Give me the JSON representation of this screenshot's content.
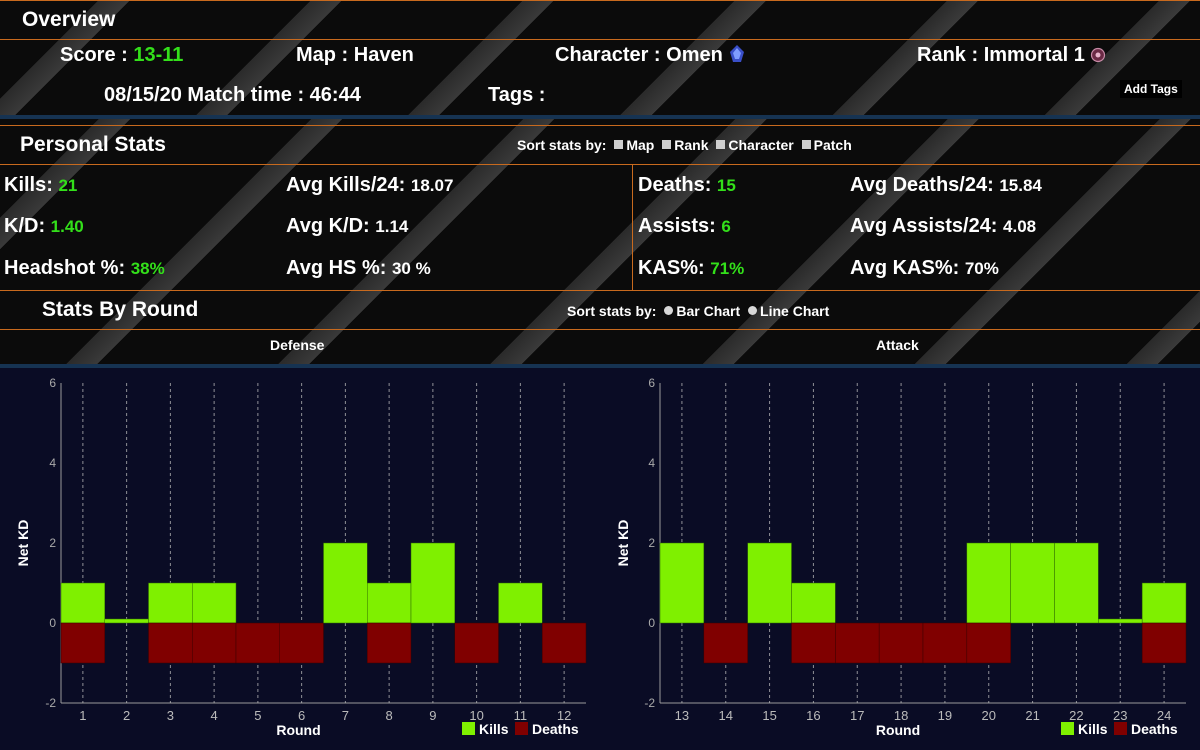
{
  "overview": {
    "title": "Overview",
    "score_label": "Score :",
    "score_value": "13-11",
    "map_label": "Map :",
    "map_value": "Haven",
    "character_label": "Character :",
    "character_value": "Omen",
    "rank_label": "Rank :",
    "rank_value": "Immortal 1",
    "date": "08/15/20",
    "match_time_label": "Match time :",
    "match_time_value": "46:44",
    "tags_label": "Tags :",
    "add_tags_label": "Add Tags"
  },
  "personal_stats": {
    "title": "Personal Stats",
    "sort_label": "Sort stats by:",
    "sort_options": [
      "Map",
      "Rank",
      "Character",
      "Patch"
    ],
    "stats": [
      {
        "label": "Kills:",
        "value": "21"
      },
      {
        "label": "Avg Kills/24:",
        "value": "18.07"
      },
      {
        "label": "Deaths:",
        "value": "15"
      },
      {
        "label": "Avg Deaths/24:",
        "value": "15.84"
      },
      {
        "label": "K/D:",
        "value": "1.40"
      },
      {
        "label": "Avg K/D:",
        "value": "1.14"
      },
      {
        "label": "Assists:",
        "value": "6"
      },
      {
        "label": "Avg Assists/24:",
        "value": "4.08"
      },
      {
        "label": "Headshot %:",
        "value": "38%"
      },
      {
        "label": "Avg HS %:",
        "value": "30 %"
      },
      {
        "label": "KAS%:",
        "value": "71%"
      },
      {
        "label": "Avg KAS%:",
        "value": "70%"
      }
    ]
  },
  "stats_by_round": {
    "title": "Stats By Round",
    "sort_label": "Sort stats by:",
    "chart_options": [
      "Bar Chart",
      "Line Chart"
    ],
    "defense_label": "Defense",
    "attack_label": "Attack"
  },
  "colors": {
    "accent": "#c86a1e",
    "green_value": "#33e01a",
    "kills": "#7ff000",
    "deaths": "#800000",
    "chart_bg": "#0a0c25"
  },
  "chart_data": [
    {
      "type": "bar",
      "title": "Defense",
      "xlabel": "Round",
      "ylabel": "Net KD",
      "ylim": [
        -2,
        6
      ],
      "yticks": [
        -2,
        0,
        2,
        4,
        6
      ],
      "categories": [
        "1",
        "2",
        "3",
        "4",
        "5",
        "6",
        "7",
        "8",
        "9",
        "10",
        "11",
        "12"
      ],
      "series": [
        {
          "name": "Kills",
          "values": [
            1,
            0.1,
            1,
            1,
            0,
            0,
            2,
            1,
            2,
            0,
            1,
            0
          ]
        },
        {
          "name": "Deaths",
          "values": [
            -1,
            0,
            -1,
            -1,
            -1,
            -1,
            0,
            -1,
            0,
            -1,
            0,
            -1
          ]
        }
      ],
      "grid": true,
      "legend": "bottom-right"
    },
    {
      "type": "bar",
      "title": "Attack",
      "xlabel": "Round",
      "ylabel": "Net KD",
      "ylim": [
        -2,
        6
      ],
      "yticks": [
        -2,
        0,
        2,
        4,
        6
      ],
      "categories": [
        "13",
        "14",
        "15",
        "16",
        "17",
        "18",
        "19",
        "20",
        "21",
        "22",
        "23",
        "24"
      ],
      "series": [
        {
          "name": "Kills",
          "values": [
            2,
            0,
            2,
            1,
            0,
            0,
            0,
            2,
            2,
            2,
            0.1,
            1
          ]
        },
        {
          "name": "Deaths",
          "values": [
            0,
            -1,
            0,
            -1,
            -1,
            -1,
            -1,
            -1,
            0,
            0,
            0,
            -1
          ]
        }
      ],
      "grid": true,
      "legend": "bottom-right"
    }
  ]
}
